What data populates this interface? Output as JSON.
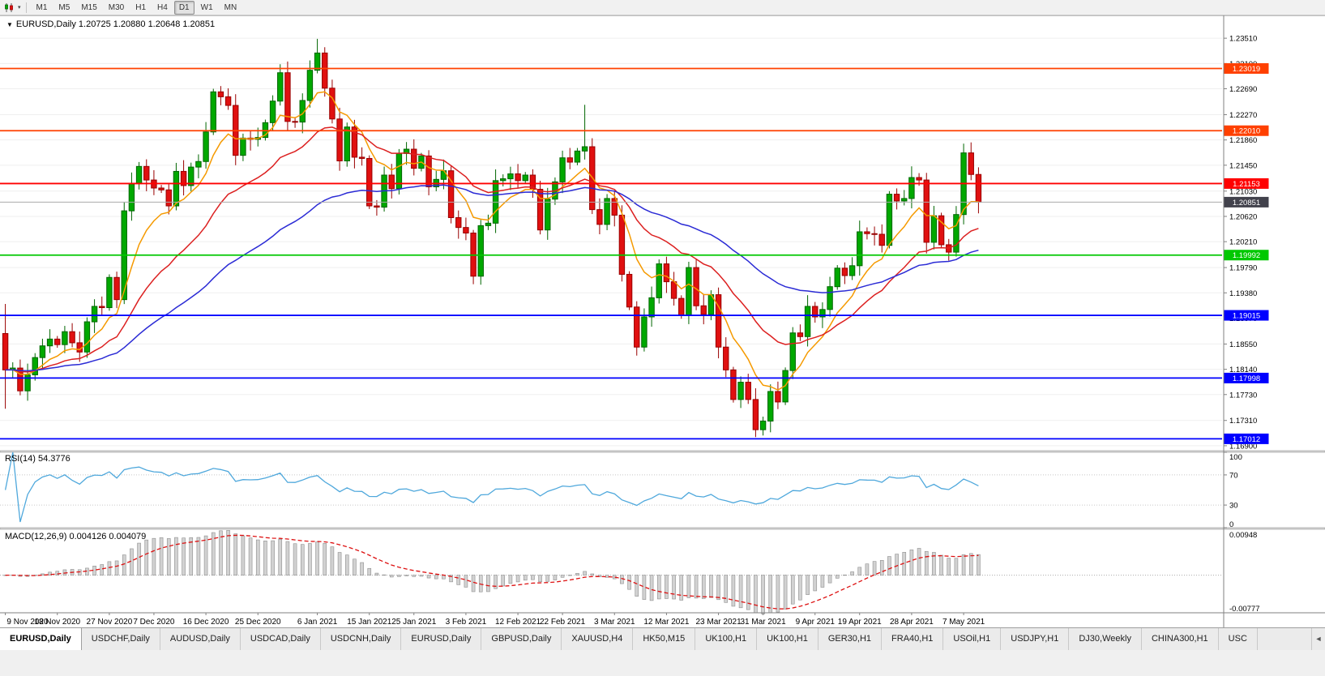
{
  "icons": {
    "caret_down": "▾",
    "menu_arrow": "▼",
    "tab_scroll_left": "◄"
  },
  "toolbar": {
    "timeframes": [
      "M1",
      "M5",
      "M15",
      "M30",
      "H1",
      "H4",
      "D1",
      "W1",
      "MN"
    ],
    "active_timeframe": "D1"
  },
  "chart": {
    "title": "EURUSD,Daily 1.20725 1.20880 1.20648 1.20851",
    "symbol": "EURUSD",
    "period": "Daily"
  },
  "chart_data": {
    "type": "candlestick",
    "main": {
      "price_range": {
        "min": 1.1682,
        "max": 1.2388
      },
      "price_axis_ticks": [
        "1.23510",
        "1.23100",
        "1.22690",
        "1.22270",
        "1.21860",
        "1.21450",
        "1.21030",
        "1.20620",
        "1.20210",
        "1.19790",
        "1.19380",
        "1.18970",
        "1.18550",
        "1.18140",
        "1.17730",
        "1.17310",
        "1.16900"
      ],
      "x_labels": [
        {
          "text": "9 Nov 2020",
          "i": 0
        },
        {
          "text": "18 Nov 2020",
          "i": 7
        },
        {
          "text": "27 Nov 2020",
          "i": 14
        },
        {
          "text": "7 Dec 2020",
          "i": 20
        },
        {
          "text": "16 Dec 2020",
          "i": 27
        },
        {
          "text": "25 Dec 2020",
          "i": 34
        },
        {
          "text": "6 Jan 2021",
          "i": 42
        },
        {
          "text": "15 Jan 2021",
          "i": 49
        },
        {
          "text": "25 Jan 2021",
          "i": 55
        },
        {
          "text": "3 Feb 2021",
          "i": 62
        },
        {
          "text": "12 Feb 2021",
          "i": 69
        },
        {
          "text": "22 Feb 2021",
          "i": 75
        },
        {
          "text": "3 Mar 2021",
          "i": 82
        },
        {
          "text": "12 Mar 2021",
          "i": 89
        },
        {
          "text": "23 Mar 2021",
          "i": 96
        },
        {
          "text": "31 Mar 2021",
          "i": 102
        },
        {
          "text": "9 Apr 2021",
          "i": 109
        },
        {
          "text": "19 Apr 2021",
          "i": 115
        },
        {
          "text": "28 Apr 2021",
          "i": 122
        },
        {
          "text": "7 May 2021",
          "i": 129
        }
      ],
      "candles": {
        "first_open": 1.1872,
        "closes": [
          1.1813,
          1.1816,
          1.1779,
          1.1805,
          1.1833,
          1.1852,
          1.1863,
          1.1854,
          1.1875,
          1.1857,
          1.1842,
          1.1891,
          1.1916,
          1.1914,
          1.1963,
          1.1927,
          1.2071,
          1.2115,
          1.2143,
          1.2121,
          1.2108,
          1.2105,
          1.2079,
          1.2135,
          1.2112,
          1.2142,
          1.2151,
          1.2199,
          1.2264,
          1.2256,
          1.2242,
          1.2161,
          1.2189,
          1.2187,
          1.219,
          1.2214,
          1.2249,
          1.2295,
          1.2216,
          1.2215,
          1.225,
          1.2299,
          1.2327,
          1.227,
          1.222,
          1.2152,
          1.2207,
          1.2158,
          1.2156,
          1.2079,
          1.2077,
          1.2129,
          1.2107,
          1.2164,
          1.2171,
          1.214,
          1.216,
          1.211,
          1.2122,
          1.2136,
          1.206,
          1.2044,
          1.2035,
          1.1965,
          1.2047,
          1.2051,
          1.212,
          1.2123,
          1.2131,
          1.212,
          1.2129,
          1.2106,
          1.204,
          1.209,
          1.2118,
          1.2157,
          1.215,
          1.2168,
          1.2175,
          1.2073,
          1.2049,
          1.2091,
          1.2064,
          1.1968,
          1.1915,
          1.185,
          1.1899,
          1.193,
          1.1985,
          1.1956,
          1.1929,
          1.1901,
          1.1979,
          1.1917,
          1.1903,
          1.1935,
          1.185,
          1.1813,
          1.1765,
          1.1793,
          1.1765,
          1.1716,
          1.173,
          1.1778,
          1.1761,
          1.1812,
          1.1873,
          1.1867,
          1.1916,
          1.1899,
          1.1911,
          1.1948,
          1.1978,
          1.1966,
          1.1982,
          1.2037,
          1.2034,
          1.2033,
          1.2015,
          1.2098,
          1.2087,
          1.2091,
          1.2125,
          1.2121,
          1.202,
          1.2063,
          1.2016,
          1.2004,
          1.2065,
          1.2165,
          1.213,
          1.20851
        ],
        "spikes": {
          "0": {
            "high": 1.192,
            "low": 1.175
          },
          "42": {
            "high": 1.235
          },
          "63": {
            "low": 1.1952
          },
          "78": {
            "high": 1.2243
          },
          "101": {
            "low": 1.1704
          },
          "129": {
            "high": 1.218
          },
          "130": {
            "high": 1.2182
          }
        }
      },
      "moving_averages": [
        {
          "name": "ma-fast",
          "period": 8,
          "color": "#F59A00"
        },
        {
          "name": "ma-mid",
          "period": 21,
          "color": "#DC2020"
        },
        {
          "name": "ma-slow",
          "period": 50,
          "color": "#2B2BD5"
        }
      ],
      "hlines": [
        {
          "value": 1.23019,
          "label": "1.23019",
          "color": "#FF4000"
        },
        {
          "value": 1.2201,
          "label": "1.22010",
          "color": "#FF4000"
        },
        {
          "value": 1.21153,
          "label": "1.21153",
          "color": "#FF0000"
        },
        {
          "value": 1.19992,
          "label": "1.19992",
          "color": "#00C800"
        },
        {
          "value": 1.19015,
          "label": "1.19015",
          "color": "#0000FF"
        },
        {
          "value": 1.17998,
          "label": "1.17998",
          "color": "#0000FF"
        },
        {
          "value": 1.17012,
          "label": "1.17012",
          "color": "#0000FF"
        }
      ],
      "current_price": {
        "value": 1.20851,
        "label": "1.20851",
        "badge_color": "#42424C"
      }
    },
    "rsi": {
      "label": "RSI(14) 54.3776",
      "period": 14,
      "current_value": 54.3776,
      "levels": [
        70,
        30
      ],
      "axis_labels": [
        "100",
        "70",
        "30",
        "0"
      ],
      "range": [
        0,
        100
      ],
      "color": "#4FA8DC"
    },
    "macd": {
      "label": "MACD(12,26,9) 0.004126 0.004079",
      "fast_ema": 12,
      "slow_ema": 26,
      "signal_period": 9,
      "current_values": [
        0.004126,
        0.004079
      ],
      "axis_max": 0.00948,
      "axis_min": -0.00777,
      "axis_labels": {
        "top": "0.00948",
        "bottom": "-0.00777"
      },
      "hist_color": "#D2D2D2",
      "hist_border": "#8E8E8E",
      "signal_color": "#DD1111"
    }
  },
  "tabs": {
    "active_index": 0,
    "items": [
      "EURUSD,Daily",
      "USDCHF,Daily",
      "AUDUSD,Daily",
      "USDCAD,Daily",
      "USDCNH,Daily",
      "EURUSD,Daily",
      "GBPUSD,Daily",
      "XAUUSD,H4",
      "HK50,M15",
      "UK100,H1",
      "UK100,H1",
      "GER30,H1",
      "FRA40,H1",
      "USOil,H1",
      "USDJPY,H1",
      "DJ30,Weekly",
      "CHINA300,H1",
      "USC"
    ]
  }
}
